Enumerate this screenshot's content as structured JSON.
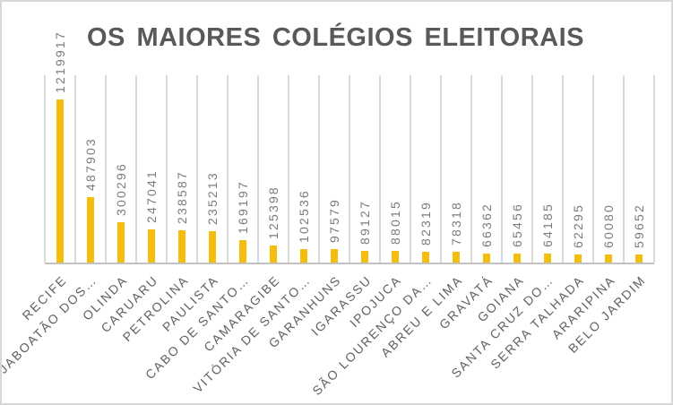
{
  "chart_data": {
    "type": "bar",
    "title": "OS MAIORES COLÉGIOS ELEITORAIS",
    "categories": [
      "RECIFE",
      "JABOATÃO DOS…",
      "OLINDA",
      "CARUARU",
      "PETROLINA",
      "PAULISTA",
      "CABO DE SANTO…",
      "CAMARAGIBE",
      "VITÓRIA DE SANTO…",
      "GARANHUNS",
      "IGARASSU",
      "IPOJUCA",
      "SÃO LOURENÇO DA…",
      "ABREU E LIMA",
      "GRAVATÁ",
      "GOIANA",
      "SANTA CRUZ DO…",
      "SERRA TALHADA",
      "ARARIPINA",
      "BELO JARDIM"
    ],
    "values": [
      1219917,
      487903,
      300296,
      247041,
      238587,
      235213,
      169197,
      125398,
      102536,
      97579,
      89127,
      88015,
      82319,
      78318,
      66362,
      65456,
      64185,
      62295,
      60080,
      59652
    ],
    "xlabel": "",
    "ylabel": "",
    "ylim": [
      0,
      1400000
    ],
    "y_axis_visible": false,
    "gridlines": "vertical-between-categories",
    "legend": "none",
    "colors": {
      "bar": "#f5bd0c",
      "gridline": "#dadada",
      "axis_line": "#c2c2c2",
      "title": "#595959",
      "value_label": "#7b7b7b",
      "category_label": "#616161",
      "border": "#d7d7d7",
      "background": "#ffffff"
    }
  }
}
